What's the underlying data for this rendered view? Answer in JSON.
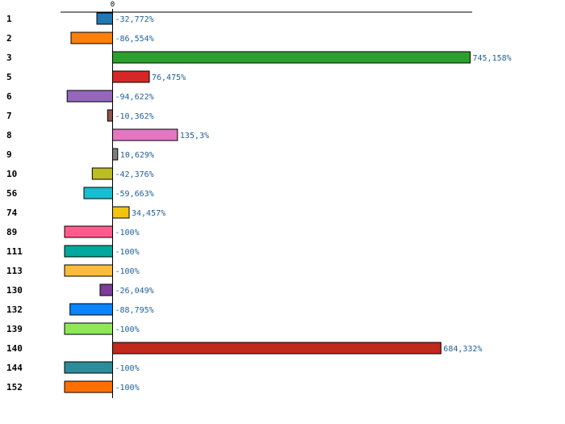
{
  "chart_data": {
    "type": "bar",
    "orientation": "horizontal",
    "title": "",
    "xlabel": "",
    "ylabel": "",
    "xlim": [
      -100,
      750
    ],
    "zero_tick_label": "0",
    "grid": false,
    "categories": [
      "1",
      "2",
      "3",
      "5",
      "6",
      "7",
      "8",
      "9",
      "10",
      "56",
      "74",
      "89",
      "111",
      "113",
      "130",
      "132",
      "139",
      "140",
      "144",
      "152"
    ],
    "values": [
      -32.772,
      -86.554,
      745.158,
      76.475,
      -94.622,
      -10.362,
      135.3,
      10.629,
      -42.376,
      -59.663,
      34.457,
      -100,
      -100,
      -100,
      -26.049,
      -88.795,
      -100,
      684.332,
      -100,
      -100
    ],
    "value_labels": [
      "-32,772%",
      "-86,554%",
      "745,158%",
      "76,475%",
      "-94,622%",
      "-10,362%",
      "135,3%",
      "10,629%",
      "-42,376%",
      "-59,663%",
      "34,457%",
      "-100%",
      "-100%",
      "-100%",
      "-26,049%",
      "-88,795%",
      "-100%",
      "684,332%",
      "-100%",
      "-100%"
    ],
    "colors": [
      "#1f77b4",
      "#ff7f0e",
      "#2ca02c",
      "#d62728",
      "#9467bd",
      "#8c564b",
      "#e377c2",
      "#7f7f7f",
      "#bcbd22",
      "#17becf",
      "#f1c40f",
      "#ff5c8d",
      "#00a99d",
      "#fbbc3c",
      "#7d3c98",
      "#0a84ff",
      "#8fe65a",
      "#c0291c",
      "#2e8b9a",
      "#ff6f00"
    ]
  }
}
